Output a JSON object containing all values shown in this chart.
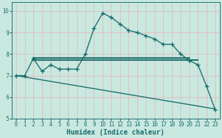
{
  "xlabel": "Humidex (Indice chaleur)",
  "x_ticks": [
    0,
    1,
    2,
    3,
    4,
    5,
    6,
    7,
    8,
    9,
    10,
    11,
    12,
    13,
    14,
    15,
    16,
    17,
    18,
    19,
    20,
    21,
    22,
    23
  ],
  "xlim": [
    -0.5,
    23.5
  ],
  "ylim": [
    5.0,
    10.4
  ],
  "yticks": [
    5,
    6,
    7,
    8,
    9,
    10
  ],
  "bg_color": "#c8e8e0",
  "grid_color_v": "#e8b8b8",
  "grid_color_h": "#e8b8b8",
  "line_color": "#1a6b6b",
  "line1_x": [
    0,
    1,
    2,
    3,
    4,
    5,
    6,
    7,
    8,
    9,
    10,
    11,
    12,
    13,
    14,
    15,
    16,
    17,
    18,
    19,
    20,
    21,
    22,
    23
  ],
  "line1_y": [
    7.0,
    7.0,
    7.8,
    7.2,
    7.5,
    7.3,
    7.3,
    7.3,
    8.0,
    9.2,
    9.9,
    9.7,
    9.4,
    9.1,
    9.0,
    8.85,
    8.7,
    8.45,
    8.45,
    8.0,
    7.7,
    7.5,
    6.5,
    5.4
  ],
  "line2_x": [
    2,
    20
  ],
  "line2_y": [
    7.82,
    7.82
  ],
  "line3_x": [
    2,
    21
  ],
  "line3_y": [
    7.72,
    7.72
  ],
  "line4_x": [
    0,
    23
  ],
  "line4_y": [
    7.0,
    5.45
  ],
  "marker": "+",
  "markersize": 4.0,
  "linewidth": 1.0,
  "xlabel_fontsize": 7,
  "tick_fontsize": 5.5
}
